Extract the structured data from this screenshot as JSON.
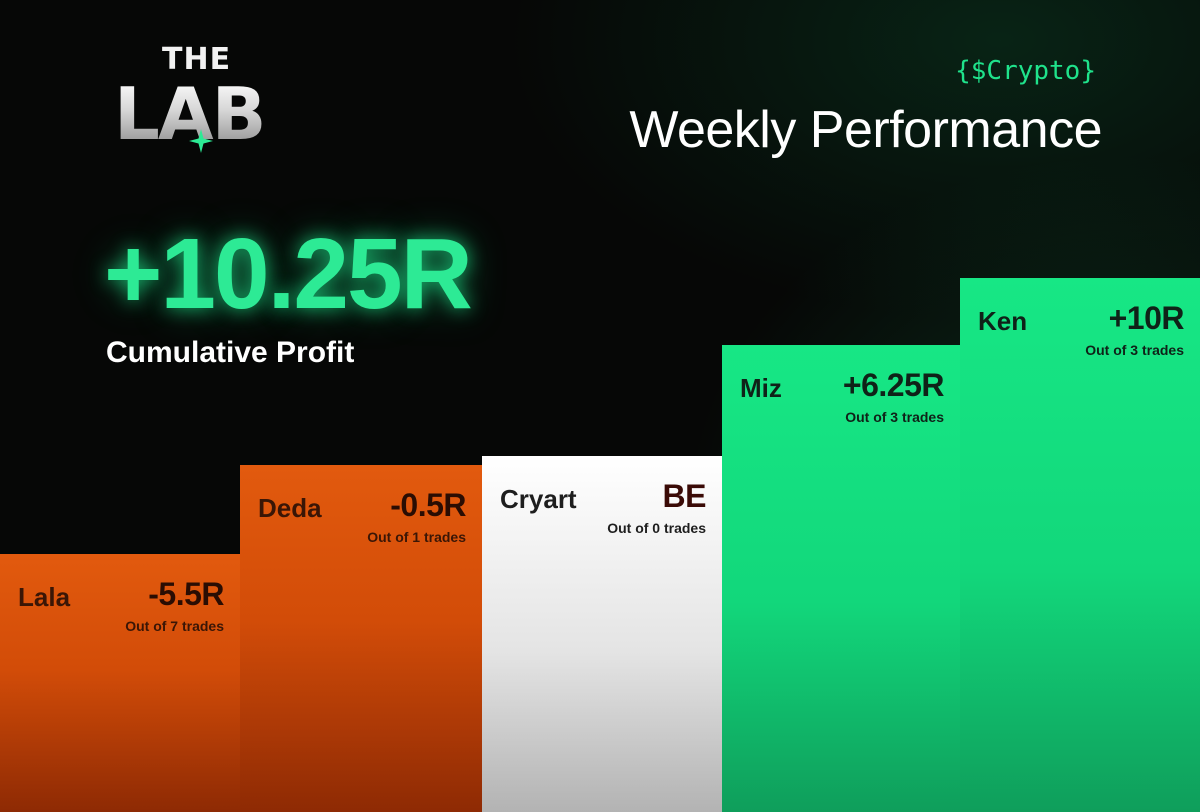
{
  "brand": {
    "top": "THE",
    "main": "LAB"
  },
  "header": {
    "tag": "{$Crypto}",
    "title": "Weekly Performance"
  },
  "summary": {
    "total": "+10.25R",
    "label": "Cumulative Profit"
  },
  "colors": {
    "accent": "#2dea95",
    "negative": "#e25a0e",
    "breakeven": "#ffffff",
    "positive": "#17e785"
  },
  "chart_data": {
    "type": "bar",
    "categories": [
      "Lala",
      "Deda",
      "Cryart",
      "Miz",
      "Ken"
    ],
    "values": [
      -5.5,
      -0.5,
      0,
      6.25,
      10
    ],
    "value_labels": [
      "-5.5R",
      "-0.5R",
      "BE",
      "+6.25R",
      "+10R"
    ],
    "trades_labels": [
      "Out of 7 trades",
      "Out of 1 trades",
      "Out of 0 trades",
      "Out of 3 trades",
      "Out of 3 trades"
    ],
    "trades": [
      7,
      1,
      0,
      3,
      3
    ],
    "title": "Weekly Performance",
    "ylim": [
      -20,
      10
    ],
    "grid": false,
    "legend": "none"
  }
}
